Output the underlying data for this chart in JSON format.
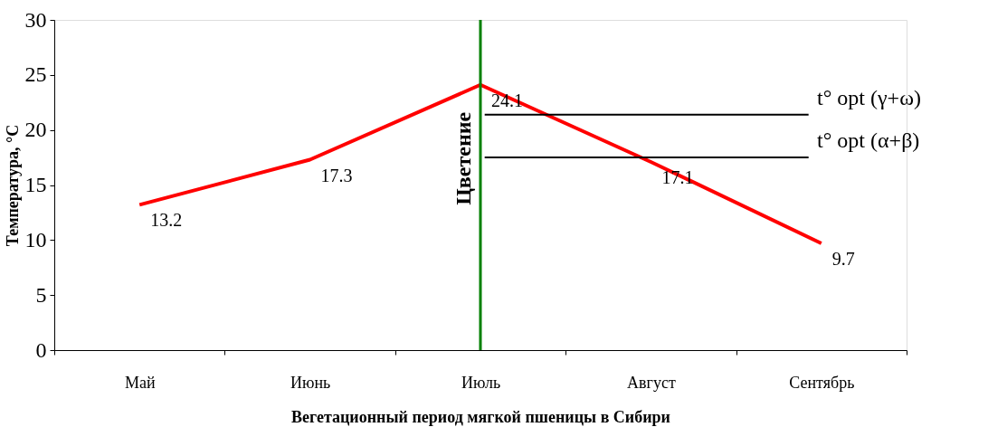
{
  "chart_data": {
    "type": "line",
    "xlabel": "Вегетационный период мягкой пшеницы в Сибири",
    "ylabel": "Температура, °С",
    "categories": [
      "Май",
      "Июнь",
      "Июль",
      "Август",
      "Сентябрь"
    ],
    "series": [
      {
        "color": "#ff0000",
        "values": [
          13.2,
          17.3,
          24.1,
          17.1,
          9.7
        ]
      }
    ],
    "ylim": [
      0,
      30
    ],
    "yticks": [
      0,
      5,
      10,
      15,
      20,
      25,
      30
    ],
    "data_labels": true,
    "grid": false,
    "marker": "none",
    "line_style": "solid",
    "ref_lines": [
      {
        "axis": "x",
        "value": "Июль",
        "label": "Цветение",
        "color": "#008000"
      },
      {
        "axis": "y",
        "value": 21.4,
        "label": "t° opt (γ+ω)",
        "color": "#000000"
      },
      {
        "axis": "y",
        "value": 17.5,
        "label": "t° opt (α+β)",
        "color": "#000000"
      }
    ]
  }
}
